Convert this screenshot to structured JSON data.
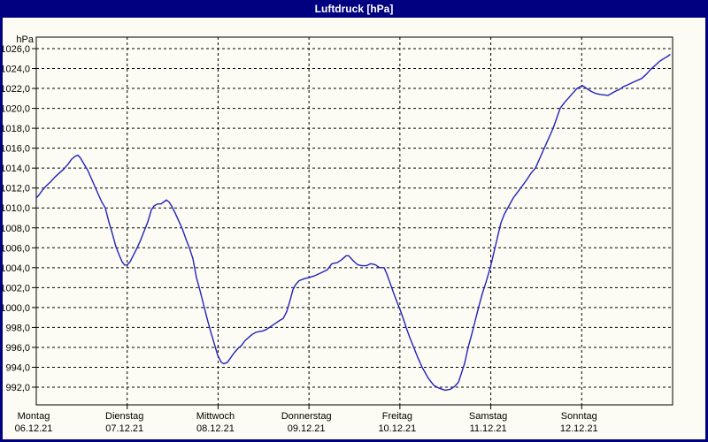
{
  "window": {
    "title": "Luftdruck [hPa]"
  },
  "colors": {
    "chrome": "#000080",
    "title_text": "#ffffff",
    "content_bg": "#fcfcf4",
    "grid": "#000000",
    "axis": "#000000",
    "line": "#2222bb"
  },
  "chart_data": {
    "type": "line",
    "title": "Luftdruck [hPa]",
    "y_unit_label": "hPa",
    "ylim": [
      992,
      1026
    ],
    "y_step": 2,
    "y_tick_labels": [
      "1026,0",
      "1024,0",
      "1022,0",
      "1020,0",
      "1018,0",
      "1016,0",
      "1014,0",
      "1012,0",
      "1010,0",
      "1008,0",
      "1006,0",
      "1004,0",
      "1002,0",
      "1000,0",
      "998,0",
      "996,0",
      "994,0",
      "992,0"
    ],
    "x_days": [
      {
        "name": "Montag",
        "date": "06.12.21"
      },
      {
        "name": "Dienstag",
        "date": "07.12.21"
      },
      {
        "name": "Mittwoch",
        "date": "08.12.21"
      },
      {
        "name": "Donnerstag",
        "date": "09.12.21"
      },
      {
        "name": "Freitag",
        "date": "10.12.21"
      },
      {
        "name": "Samstag",
        "date": "11.12.21"
      },
      {
        "name": "Sonntag",
        "date": "12.12.21"
      }
    ],
    "grid": "dashed",
    "legend": "none",
    "series": [
      {
        "name": "Luftdruck",
        "points": [
          [
            0.0,
            1011.0
          ],
          [
            0.029,
            1011.3
          ],
          [
            0.068,
            1011.8
          ],
          [
            0.107,
            1012.2
          ],
          [
            0.156,
            1012.6
          ],
          [
            0.204,
            1013.1
          ],
          [
            0.253,
            1013.5
          ],
          [
            0.302,
            1013.9
          ],
          [
            0.35,
            1014.4
          ],
          [
            0.389,
            1014.9
          ],
          [
            0.428,
            1015.2
          ],
          [
            0.458,
            1015.3
          ],
          [
            0.487,
            1015.0
          ],
          [
            0.526,
            1014.4
          ],
          [
            0.565,
            1013.8
          ],
          [
            0.604,
            1013.0
          ],
          [
            0.643,
            1012.2
          ],
          [
            0.681,
            1011.4
          ],
          [
            0.72,
            1010.6
          ],
          [
            0.759,
            1010.0
          ],
          [
            0.798,
            1008.6
          ],
          [
            0.837,
            1007.4
          ],
          [
            0.876,
            1006.1
          ],
          [
            0.915,
            1005.2
          ],
          [
            0.944,
            1004.6
          ],
          [
            0.973,
            1004.25
          ],
          [
            1.003,
            1004.3
          ],
          [
            1.032,
            1004.6
          ],
          [
            1.071,
            1005.3
          ],
          [
            1.11,
            1006.0
          ],
          [
            1.149,
            1006.8
          ],
          [
            1.188,
            1007.7
          ],
          [
            1.227,
            1008.6
          ],
          [
            1.266,
            1009.8
          ],
          [
            1.295,
            1010.2
          ],
          [
            1.334,
            1010.4
          ],
          [
            1.373,
            1010.4
          ],
          [
            1.402,
            1010.6
          ],
          [
            1.431,
            1010.8
          ],
          [
            1.46,
            1010.6
          ],
          [
            1.489,
            1010.2
          ],
          [
            1.528,
            1009.5
          ],
          [
            1.567,
            1008.7
          ],
          [
            1.606,
            1007.9
          ],
          [
            1.645,
            1006.9
          ],
          [
            1.684,
            1006.0
          ],
          [
            1.723,
            1004.9
          ],
          [
            1.762,
            1003.0
          ],
          [
            1.801,
            1001.7
          ],
          [
            1.84,
            1000.3
          ],
          [
            1.879,
            998.9
          ],
          [
            1.918,
            997.6
          ],
          [
            1.957,
            996.4
          ],
          [
            1.996,
            995.2
          ],
          [
            2.035,
            994.5
          ],
          [
            2.064,
            994.35
          ],
          [
            2.103,
            994.5
          ],
          [
            2.142,
            995.0
          ],
          [
            2.181,
            995.5
          ],
          [
            2.22,
            995.9
          ],
          [
            2.259,
            996.2
          ],
          [
            2.298,
            996.7
          ],
          [
            2.337,
            997.0
          ],
          [
            2.375,
            997.3
          ],
          [
            2.414,
            997.5
          ],
          [
            2.453,
            997.6
          ],
          [
            2.492,
            997.65
          ],
          [
            2.531,
            997.8
          ],
          [
            2.58,
            998.1
          ],
          [
            2.629,
            998.4
          ],
          [
            2.677,
            998.7
          ],
          [
            2.716,
            998.9
          ],
          [
            2.755,
            999.6
          ],
          [
            2.794,
            1000.8
          ],
          [
            2.823,
            1001.8
          ],
          [
            2.853,
            1002.3
          ],
          [
            2.892,
            1002.7
          ],
          [
            2.95,
            1002.9
          ],
          [
            2.999,
            1003.0
          ],
          [
            3.067,
            1003.2
          ],
          [
            3.135,
            1003.5
          ],
          [
            3.203,
            1003.8
          ],
          [
            3.252,
            1004.4
          ],
          [
            3.31,
            1004.5
          ],
          [
            3.359,
            1004.8
          ],
          [
            3.408,
            1005.2
          ],
          [
            3.437,
            1005.2
          ],
          [
            3.485,
            1004.7
          ],
          [
            3.534,
            1004.3
          ],
          [
            3.583,
            1004.2
          ],
          [
            3.631,
            1004.2
          ],
          [
            3.68,
            1004.4
          ],
          [
            3.729,
            1004.3
          ],
          [
            3.777,
            1004.0
          ],
          [
            3.826,
            1004.0
          ],
          [
            3.855,
            1003.4
          ],
          [
            3.894,
            1002.4
          ],
          [
            3.933,
            1001.4
          ],
          [
            3.962,
            1000.7
          ],
          [
            4.001,
            999.8
          ],
          [
            4.04,
            998.8
          ],
          [
            4.069,
            998.0
          ],
          [
            4.108,
            997.0
          ],
          [
            4.147,
            996.1
          ],
          [
            4.196,
            995.0
          ],
          [
            4.245,
            994.0
          ],
          [
            4.313,
            992.9
          ],
          [
            4.371,
            992.2
          ],
          [
            4.43,
            991.9
          ],
          [
            4.498,
            991.7
          ],
          [
            4.556,
            991.8
          ],
          [
            4.605,
            992.1
          ],
          [
            4.644,
            992.5
          ],
          [
            4.673,
            993.3
          ],
          [
            4.712,
            994.4
          ],
          [
            4.751,
            996.0
          ],
          [
            4.79,
            997.3
          ],
          [
            4.829,
            998.7
          ],
          [
            4.868,
            1000.1
          ],
          [
            4.907,
            1001.4
          ],
          [
            4.946,
            1002.5
          ],
          [
            4.994,
            1004.0
          ],
          [
            5.033,
            1005.5
          ],
          [
            5.072,
            1007.0
          ],
          [
            5.111,
            1008.5
          ],
          [
            5.15,
            1009.4
          ],
          [
            5.199,
            1010.2
          ],
          [
            5.247,
            1011.0
          ],
          [
            5.296,
            1011.6
          ],
          [
            5.345,
            1012.2
          ],
          [
            5.394,
            1012.8
          ],
          [
            5.443,
            1013.5
          ],
          [
            5.491,
            1014.0
          ],
          [
            5.54,
            1015.0
          ],
          [
            5.588,
            1016.0
          ],
          [
            5.637,
            1017.0
          ],
          [
            5.686,
            1018.0
          ],
          [
            5.725,
            1019.0
          ],
          [
            5.763,
            1020.0
          ],
          [
            5.812,
            1020.6
          ],
          [
            5.861,
            1021.1
          ],
          [
            5.909,
            1021.6
          ],
          [
            5.948,
            1022.0
          ],
          [
            6.007,
            1022.3
          ],
          [
            6.055,
            1022.0
          ],
          [
            6.104,
            1021.7
          ],
          [
            6.153,
            1021.5
          ],
          [
            6.201,
            1021.4
          ],
          [
            6.25,
            1021.35
          ],
          [
            6.289,
            1021.3
          ],
          [
            6.328,
            1021.5
          ],
          [
            6.367,
            1021.7
          ],
          [
            6.415,
            1021.9
          ],
          [
            6.464,
            1022.2
          ],
          [
            6.513,
            1022.4
          ],
          [
            6.562,
            1022.6
          ],
          [
            6.611,
            1022.8
          ],
          [
            6.659,
            1023.0
          ],
          [
            6.708,
            1023.4
          ],
          [
            6.757,
            1023.9
          ],
          [
            6.806,
            1024.3
          ],
          [
            6.854,
            1024.7
          ],
          [
            6.903,
            1025.0
          ],
          [
            6.942,
            1025.2
          ],
          [
            6.971,
            1025.4
          ]
        ]
      }
    ]
  }
}
